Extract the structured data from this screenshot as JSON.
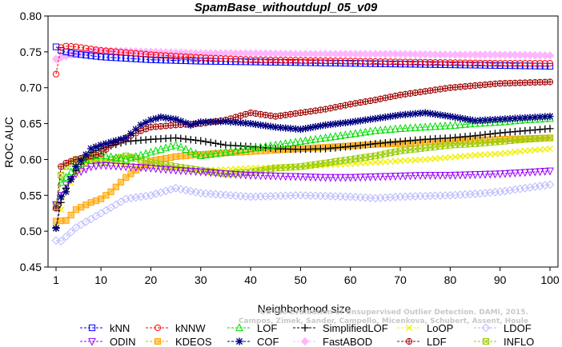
{
  "chart_data": {
    "type": "line",
    "title": "SpamBase_withoutdupl_05_v09",
    "xlabel": "Neighborhood size",
    "ylabel": "ROC AUC",
    "xlim": [
      1,
      100
    ],
    "ylim": [
      0.45,
      0.8
    ],
    "xticks": [
      1,
      10,
      20,
      30,
      40,
      50,
      60,
      70,
      80,
      90,
      100
    ],
    "yticks": [
      "0.45",
      "0.50",
      "0.55",
      "0.60",
      "0.65",
      "0.70",
      "0.75",
      "0.80"
    ],
    "legend_position": "bottom",
    "watermark": [
      "Campos, Zimek, Sander, Campello, Micenkova, Schubert, Assent, Houle",
      "On the Evaluation of Unsupervised Outlier Detection. DAMI, 2015."
    ],
    "series": [
      {
        "name": "kNN",
        "color": "#0000ff",
        "marker": "square",
        "points": [
          [
            1,
            0.757
          ],
          [
            2,
            0.752
          ],
          [
            3,
            0.75
          ],
          [
            5,
            0.747
          ],
          [
            10,
            0.743
          ],
          [
            20,
            0.739
          ],
          [
            30,
            0.737
          ],
          [
            40,
            0.736
          ],
          [
            50,
            0.735
          ],
          [
            60,
            0.734
          ],
          [
            70,
            0.733
          ],
          [
            80,
            0.732
          ],
          [
            90,
            0.731
          ],
          [
            100,
            0.73
          ]
        ]
      },
      {
        "name": "kNNW",
        "color": "#ff0000",
        "marker": "circle",
        "points": [
          [
            1,
            0.719
          ],
          [
            2,
            0.756
          ],
          [
            3,
            0.758
          ],
          [
            5,
            0.757
          ],
          [
            10,
            0.752
          ],
          [
            20,
            0.746
          ],
          [
            30,
            0.742
          ],
          [
            40,
            0.739
          ],
          [
            50,
            0.738
          ],
          [
            60,
            0.737
          ],
          [
            70,
            0.736
          ],
          [
            80,
            0.735
          ],
          [
            90,
            0.734
          ],
          [
            100,
            0.734
          ]
        ]
      },
      {
        "name": "LOF",
        "color": "#00dd00",
        "marker": "triangle-up",
        "points": [
          [
            1,
            0.534
          ],
          [
            2,
            0.568
          ],
          [
            3,
            0.575
          ],
          [
            5,
            0.59
          ],
          [
            8,
            0.604
          ],
          [
            10,
            0.606
          ],
          [
            15,
            0.6
          ],
          [
            20,
            0.61
          ],
          [
            25,
            0.62
          ],
          [
            30,
            0.605
          ],
          [
            35,
            0.61
          ],
          [
            40,
            0.615
          ],
          [
            45,
            0.62
          ],
          [
            50,
            0.625
          ],
          [
            55,
            0.63
          ],
          [
            60,
            0.635
          ],
          [
            65,
            0.64
          ],
          [
            70,
            0.643
          ],
          [
            75,
            0.645
          ],
          [
            80,
            0.647
          ],
          [
            85,
            0.65
          ],
          [
            90,
            0.652
          ],
          [
            95,
            0.655
          ],
          [
            100,
            0.657
          ]
        ]
      },
      {
        "name": "SimplifiedLOF",
        "color": "#000000",
        "marker": "plus",
        "points": [
          [
            1,
            0.505
          ],
          [
            2,
            0.54
          ],
          [
            3,
            0.56
          ],
          [
            5,
            0.585
          ],
          [
            8,
            0.61
          ],
          [
            10,
            0.615
          ],
          [
            15,
            0.625
          ],
          [
            20,
            0.628
          ],
          [
            25,
            0.63
          ],
          [
            30,
            0.626
          ],
          [
            35,
            0.62
          ],
          [
            40,
            0.618
          ],
          [
            45,
            0.615
          ],
          [
            50,
            0.614
          ],
          [
            55,
            0.615
          ],
          [
            60,
            0.618
          ],
          [
            65,
            0.622
          ],
          [
            70,
            0.625
          ],
          [
            75,
            0.628
          ],
          [
            80,
            0.63
          ],
          [
            85,
            0.633
          ],
          [
            90,
            0.637
          ],
          [
            95,
            0.64
          ],
          [
            100,
            0.643
          ]
        ]
      },
      {
        "name": "LoOP",
        "color": "#f0f000",
        "marker": "cross",
        "points": [
          [
            1,
            0.505
          ],
          [
            3,
            0.555
          ],
          [
            5,
            0.58
          ],
          [
            8,
            0.598
          ],
          [
            10,
            0.6
          ],
          [
            15,
            0.592
          ],
          [
            20,
            0.59
          ],
          [
            25,
            0.588
          ],
          [
            30,
            0.585
          ],
          [
            35,
            0.586
          ],
          [
            40,
            0.588
          ],
          [
            45,
            0.589
          ],
          [
            50,
            0.59
          ],
          [
            55,
            0.592
          ],
          [
            60,
            0.594
          ],
          [
            65,
            0.596
          ],
          [
            70,
            0.598
          ],
          [
            75,
            0.6
          ],
          [
            80,
            0.603
          ],
          [
            85,
            0.606
          ],
          [
            90,
            0.608
          ],
          [
            95,
            0.612
          ],
          [
            100,
            0.615
          ]
        ]
      },
      {
        "name": "LDOF",
        "color": "#b8b8ff",
        "marker": "diamond",
        "points": [
          [
            1,
            0.487
          ],
          [
            2,
            0.486
          ],
          [
            5,
            0.505
          ],
          [
            10,
            0.525
          ],
          [
            15,
            0.545
          ],
          [
            20,
            0.55
          ],
          [
            25,
            0.56
          ],
          [
            30,
            0.553
          ],
          [
            40,
            0.548
          ],
          [
            50,
            0.55
          ],
          [
            60,
            0.548
          ],
          [
            65,
            0.546
          ],
          [
            70,
            0.548
          ],
          [
            80,
            0.55
          ],
          [
            85,
            0.552
          ],
          [
            90,
            0.555
          ],
          [
            95,
            0.56
          ],
          [
            100,
            0.565
          ]
        ]
      },
      {
        "name": "ODIN",
        "color": "#9900ff",
        "marker": "triangle-down",
        "points": [
          [
            1,
            0.537
          ],
          [
            2,
            0.55
          ],
          [
            3,
            0.565
          ],
          [
            5,
            0.58
          ],
          [
            8,
            0.59
          ],
          [
            10,
            0.592
          ],
          [
            15,
            0.59
          ],
          [
            20,
            0.588
          ],
          [
            25,
            0.585
          ],
          [
            30,
            0.583
          ],
          [
            35,
            0.58
          ],
          [
            40,
            0.578
          ],
          [
            45,
            0.577
          ],
          [
            50,
            0.576
          ],
          [
            55,
            0.575
          ],
          [
            60,
            0.575
          ],
          [
            65,
            0.576
          ],
          [
            70,
            0.577
          ],
          [
            75,
            0.578
          ],
          [
            80,
            0.578
          ],
          [
            85,
            0.579
          ],
          [
            90,
            0.58
          ],
          [
            95,
            0.582
          ],
          [
            100,
            0.584
          ]
        ]
      },
      {
        "name": "KDEOS",
        "color": "#ffa500",
        "marker": "square-cross",
        "points": [
          [
            1,
            0.514
          ],
          [
            3,
            0.515
          ],
          [
            5,
            0.53
          ],
          [
            8,
            0.54
          ],
          [
            10,
            0.545
          ],
          [
            12,
            0.555
          ],
          [
            15,
            0.575
          ],
          [
            18,
            0.59
          ],
          [
            20,
            0.598
          ],
          [
            25,
            0.604
          ],
          [
            30,
            0.607
          ],
          [
            35,
            0.609
          ],
          [
            40,
            0.611
          ],
          [
            45,
            0.613
          ],
          [
            50,
            0.615
          ],
          [
            55,
            0.617
          ],
          [
            60,
            0.619
          ],
          [
            65,
            0.621
          ],
          [
            70,
            0.622
          ],
          [
            75,
            0.624
          ],
          [
            80,
            0.626
          ],
          [
            85,
            0.627
          ],
          [
            90,
            0.628
          ],
          [
            95,
            0.629
          ],
          [
            100,
            0.63
          ]
        ]
      },
      {
        "name": "COF",
        "color": "#000080",
        "marker": "asterisk",
        "points": [
          [
            1,
            0.504
          ],
          [
            2,
            0.548
          ],
          [
            3,
            0.555
          ],
          [
            5,
            0.59
          ],
          [
            8,
            0.615
          ],
          [
            10,
            0.62
          ],
          [
            15,
            0.63
          ],
          [
            18,
            0.648
          ],
          [
            20,
            0.655
          ],
          [
            22,
            0.659
          ],
          [
            25,
            0.656
          ],
          [
            28,
            0.648
          ],
          [
            30,
            0.652
          ],
          [
            35,
            0.653
          ],
          [
            40,
            0.65
          ],
          [
            45,
            0.645
          ],
          [
            50,
            0.642
          ],
          [
            55,
            0.648
          ],
          [
            60,
            0.652
          ],
          [
            65,
            0.657
          ],
          [
            70,
            0.662
          ],
          [
            75,
            0.665
          ],
          [
            80,
            0.66
          ],
          [
            85,
            0.654
          ],
          [
            90,
            0.656
          ],
          [
            95,
            0.658
          ],
          [
            100,
            0.66
          ]
        ]
      },
      {
        "name": "FastABOD",
        "color": "#ffb6ff",
        "marker": "diamond-filled",
        "points": [
          [
            1,
            0.74
          ],
          [
            5,
            0.748
          ],
          [
            10,
            0.752
          ],
          [
            20,
            0.75
          ],
          [
            30,
            0.748
          ],
          [
            40,
            0.748
          ],
          [
            50,
            0.747
          ],
          [
            60,
            0.747
          ],
          [
            70,
            0.747
          ],
          [
            80,
            0.746
          ],
          [
            90,
            0.746
          ],
          [
            100,
            0.745
          ]
        ]
      },
      {
        "name": "LDF",
        "color": "#a00000",
        "marker": "circle-plus",
        "points": [
          [
            1,
            0.532
          ],
          [
            2,
            0.59
          ],
          [
            3,
            0.595
          ],
          [
            5,
            0.6
          ],
          [
            8,
            0.605
          ],
          [
            10,
            0.608
          ],
          [
            12,
            0.62
          ],
          [
            15,
            0.63
          ],
          [
            18,
            0.64
          ],
          [
            20,
            0.645
          ],
          [
            25,
            0.648
          ],
          [
            30,
            0.65
          ],
          [
            35,
            0.655
          ],
          [
            40,
            0.665
          ],
          [
            45,
            0.66
          ],
          [
            50,
            0.665
          ],
          [
            55,
            0.67
          ],
          [
            60,
            0.677
          ],
          [
            65,
            0.683
          ],
          [
            70,
            0.69
          ],
          [
            75,
            0.695
          ],
          [
            80,
            0.7
          ],
          [
            85,
            0.703
          ],
          [
            90,
            0.706
          ],
          [
            95,
            0.707
          ],
          [
            100,
            0.708
          ]
        ]
      },
      {
        "name": "INFLO",
        "color": "#99cc00",
        "marker": "square-x",
        "points": [
          [
            1,
            0.537
          ],
          [
            2,
            0.578
          ],
          [
            3,
            0.59
          ],
          [
            5,
            0.6
          ],
          [
            8,
            0.6
          ],
          [
            10,
            0.595
          ],
          [
            15,
            0.605
          ],
          [
            18,
            0.6
          ],
          [
            20,
            0.596
          ],
          [
            25,
            0.59
          ],
          [
            30,
            0.585
          ],
          [
            35,
            0.58
          ],
          [
            40,
            0.582
          ],
          [
            45,
            0.588
          ],
          [
            50,
            0.59
          ],
          [
            55,
            0.595
          ],
          [
            60,
            0.6
          ],
          [
            65,
            0.605
          ],
          [
            70,
            0.612
          ],
          [
            75,
            0.616
          ],
          [
            80,
            0.62
          ],
          [
            85,
            0.622
          ],
          [
            90,
            0.625
          ],
          [
            95,
            0.628
          ],
          [
            100,
            0.63
          ]
        ]
      }
    ]
  }
}
